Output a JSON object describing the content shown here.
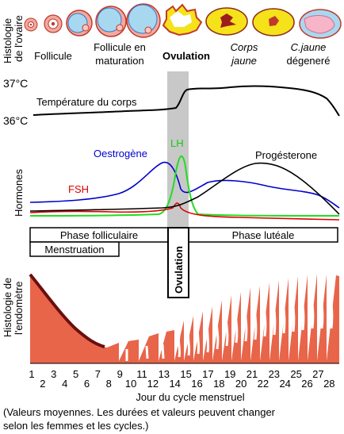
{
  "ovary": {
    "axis_label_line1": "Histologie",
    "axis_label_line2": "de l'ovaire",
    "stages": [
      {
        "line1": "Follicule",
        "line2": ""
      },
      {
        "line1": "Follicule en",
        "line2": "maturation"
      },
      {
        "line1": "Ovulation",
        "line2": ""
      },
      {
        "line1": "Corps",
        "line2": "jaune"
      },
      {
        "line1": "C.jaune",
        "line2": "dégeneré"
      }
    ]
  },
  "temperature": {
    "label": "Température du corps",
    "high_tick": "37°C",
    "low_tick": "36°C"
  },
  "hormones": {
    "axis_label": "Hormones",
    "series": [
      {
        "name": "Oestrogène",
        "color": "#0000cc"
      },
      {
        "name": "LH",
        "color": "#00dd00"
      },
      {
        "name": "FSH",
        "color": "#dd0000"
      },
      {
        "name": "Progésterone",
        "color": "#000000"
      }
    ]
  },
  "phases": {
    "follicular": "Phase folliculaire",
    "luteal": "Phase lutéale",
    "menstruation": "Menstruation",
    "ovulation": "Ovulation"
  },
  "endometrium": {
    "axis_label_line1": "Histologie de",
    "axis_label_line2": "l'endomètre",
    "fill_color": "#e8654a"
  },
  "days": {
    "odd": [
      "1",
      "3",
      "5",
      "7",
      "9",
      "11",
      "13",
      "15",
      "17",
      "19",
      "21",
      "23",
      "25",
      "27"
    ],
    "even": [
      "2",
      "4",
      "6",
      "8",
      "10",
      "12",
      "14",
      "16",
      "18",
      "20",
      "22",
      "24",
      "26",
      "28"
    ],
    "title": "Jour du cycle menstruel"
  },
  "footnote": {
    "line1": "(Valeurs moyennes. Les durées et valeurs peuvent changer",
    "line2": "selon les femmes et les cycles.)"
  }
}
